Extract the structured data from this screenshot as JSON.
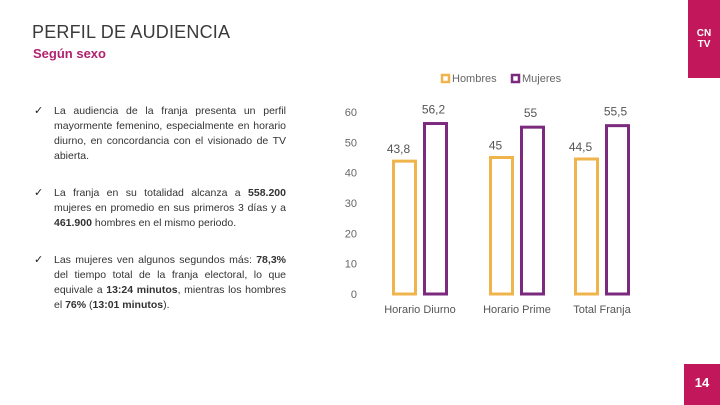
{
  "header": {
    "title": "PERFIL DE AUDIENCIA",
    "subtitle": "Según sexo",
    "logo_line1": "CN",
    "logo_line2": "TV"
  },
  "bullets": [
    {
      "check": "✓",
      "parts": [
        {
          "text": "La audiencia de la franja presenta un perfil mayormente femenino, especialmente en horario diurno, en concordancia con el visionado de TV abierta.",
          "bold": false
        }
      ]
    },
    {
      "check": "✓",
      "parts": [
        {
          "text": "La franja en su totalidad alcanza a ",
          "bold": false
        },
        {
          "text": "558.200",
          "bold": true
        },
        {
          "text": " mujeres en promedio en sus primeros 3 días y a ",
          "bold": false
        },
        {
          "text": "461.900",
          "bold": true
        },
        {
          "text": " hombres en el mismo periodo.",
          "bold": false
        }
      ]
    },
    {
      "check": "✓",
      "parts": [
        {
          "text": "Las mujeres ven algunos segundos más: ",
          "bold": false
        },
        {
          "text": "78,3%",
          "bold": true
        },
        {
          "text": " del tiempo total de la franja electoral, lo que equivale a ",
          "bold": false
        },
        {
          "text": "13:24 minutos",
          "bold": true
        },
        {
          "text": ", mientras los hombres el ",
          "bold": false
        },
        {
          "text": "76%",
          "bold": true
        },
        {
          "text": " (",
          "bold": false
        },
        {
          "text": "13:01 minutos",
          "bold": true
        },
        {
          "text": ").",
          "bold": false
        }
      ]
    }
  ],
  "chart_data": {
    "type": "bar",
    "categories": [
      "Horario Diurno",
      "Horario Prime",
      "Total Franja"
    ],
    "series": [
      {
        "name": "Hombres",
        "values": [
          43.8,
          45,
          44.5
        ],
        "labels": [
          "43,8",
          "45",
          "44,5"
        ],
        "color": "#f0b44c"
      },
      {
        "name": "Mujeres",
        "values": [
          56.2,
          55,
          55.5
        ],
        "labels": [
          "56,2",
          "55",
          "55,5"
        ],
        "color": "#7b2a7e"
      }
    ],
    "yticks": [
      "0",
      "10",
      "20",
      "30",
      "40",
      "50",
      "60"
    ],
    "ylim": [
      0,
      60
    ],
    "legend_position": "top-right",
    "grid": false
  },
  "page_number": "14"
}
